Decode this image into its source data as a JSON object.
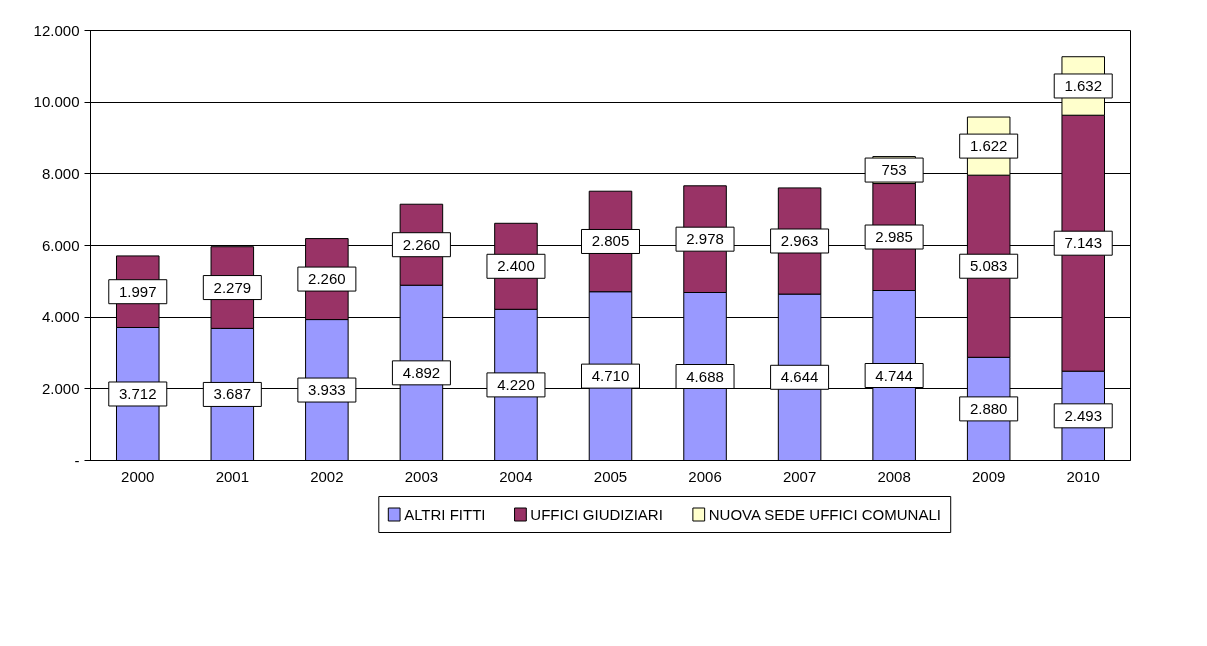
{
  "chart_data": {
    "type": "bar",
    "stacked": true,
    "categories": [
      "2000",
      "2001",
      "2002",
      "2003",
      "2004",
      "2005",
      "2006",
      "2007",
      "2008",
      "2009",
      "2010"
    ],
    "series": [
      {
        "name": "ALTRI FITTI",
        "color": "#9999ff",
        "values": [
          3712,
          3687,
          3933,
          4892,
          4220,
          4710,
          4688,
          4644,
          4744,
          2880,
          2493
        ],
        "value_labels": [
          "3.712",
          "3.687",
          "3.933",
          "4.892",
          "4.220",
          "4.710",
          "4.688",
          "4.644",
          "4.744",
          "2.880",
          "2.493"
        ]
      },
      {
        "name": "UFFICI GIUDIZIARI",
        "color": "#993366",
        "values": [
          1997,
          2279,
          2260,
          2260,
          2400,
          2805,
          2978,
          2963,
          2985,
          5083,
          7143
        ],
        "value_labels": [
          "1.997",
          "2.279",
          "2.260",
          "2.260",
          "2.400",
          "2.805",
          "2.978",
          "2.963",
          "2.985",
          "5.083",
          "7.143"
        ]
      },
      {
        "name": "NUOVA SEDE UFFICI COMUNALI",
        "color": "#ffffcc",
        "values": [
          null,
          null,
          null,
          null,
          null,
          null,
          null,
          null,
          753,
          1622,
          1632
        ],
        "value_labels": [
          null,
          null,
          null,
          null,
          null,
          null,
          null,
          null,
          "753",
          "1.622",
          "1.632"
        ]
      }
    ],
    "ylim": [
      0,
      12000
    ],
    "yticks": [
      {
        "value": 0,
        "label": "-"
      },
      {
        "value": 2000,
        "label": "2.000"
      },
      {
        "value": 4000,
        "label": "4.000"
      },
      {
        "value": 6000,
        "label": "6.000"
      },
      {
        "value": 8000,
        "label": "8.000"
      },
      {
        "value": 10000,
        "label": "10.000"
      },
      {
        "value": 12000,
        "label": "12.000"
      }
    ],
    "grid": "y",
    "legend": "bottom"
  }
}
